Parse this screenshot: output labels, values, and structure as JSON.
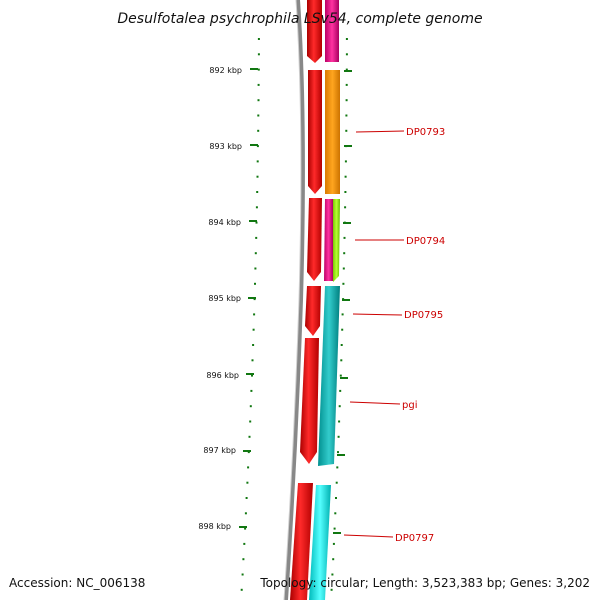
{
  "title": "Desulfotalea psychrophila LSv54, complete genome",
  "accession": "Accession: NC_006138",
  "summary": "Topology: circular; Length: 3,523,383 bp; Genes: 3,202",
  "ticks": [
    "892 kbp",
    "893 kbp",
    "894 kbp",
    "895 kbp",
    "896 kbp",
    "897 kbp",
    "898 kbp"
  ],
  "genes": [
    {
      "label": "DP0793",
      "color": "#cc0000"
    },
    {
      "label": "DP0794",
      "color": "#cc0000"
    },
    {
      "label": "DP0795",
      "color": "#cc0000"
    },
    {
      "label": "pgi",
      "color": "#cc0000"
    },
    {
      "label": "DP0797",
      "color": "#cc0000"
    }
  ],
  "colors": {
    "backbone": "#8a8a8a",
    "cds": "#ee0000",
    "orange": "#ff9900",
    "magenta": "#ee1188",
    "green": "#99ee00",
    "teal": "#11bbbb",
    "cyan": "#00eeee",
    "tick": "#117711"
  }
}
